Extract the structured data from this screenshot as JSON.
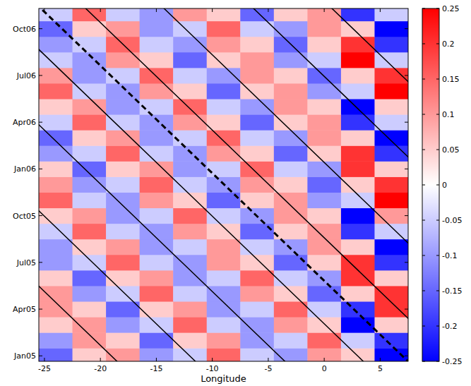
{
  "chart_data": {
    "type": "heatmap",
    "x_label": "Longitude",
    "xlim": [
      -25.5,
      7.5
    ],
    "xticks": [
      -25,
      -20,
      -15,
      -10,
      -5,
      0,
      5
    ],
    "ylim": [
      -0.35,
      22.3
    ],
    "yticks": [
      {
        "value": 0,
        "label": "Jan05"
      },
      {
        "value": 3,
        "label": "Apr05"
      },
      {
        "value": 6,
        "label": "Jul05"
      },
      {
        "value": 9,
        "label": "Oct05"
      },
      {
        "value": 12,
        "label": "Jan06"
      },
      {
        "value": 15,
        "label": "Apr06"
      },
      {
        "value": 18,
        "label": "Jul06"
      },
      {
        "value": 21,
        "label": "Oct06"
      }
    ],
    "x": [
      -24,
      -21,
      -18,
      -15,
      -12,
      -9,
      -6,
      -3,
      0,
      3,
      6
    ],
    "y": [
      0,
      1,
      2,
      3,
      4,
      5,
      6,
      7,
      8,
      9,
      10,
      11,
      12,
      13,
      14,
      15,
      16,
      17,
      18,
      19,
      20,
      21,
      22
    ],
    "cells": [
      [
        -0.15,
        0.05,
        0.1,
        -0.1,
        -0.05,
        0.15,
        -0.05,
        -0.1,
        0.1,
        0.05,
        -0.25
      ],
      [
        -0.1,
        0.1,
        0.05,
        -0.15,
        0.05,
        0.1,
        -0.1,
        -0.05,
        0.15,
        -0.05,
        -0.2
      ],
      [
        0.05,
        0.1,
        -0.1,
        -0.05,
        0.15,
        -0.05,
        -0.1,
        0.1,
        0.05,
        -0.25,
        0.05
      ],
      [
        0.1,
        0.05,
        -0.15,
        0.05,
        0.1,
        -0.1,
        -0.05,
        0.15,
        -0.05,
        -0.2,
        0.2
      ],
      [
        0.1,
        -0.1,
        -0.05,
        0.15,
        -0.05,
        -0.1,
        0.1,
        0.05,
        -0.15,
        0.05,
        0.2
      ],
      [
        0.05,
        -0.15,
        0.05,
        0.1,
        -0.1,
        -0.05,
        0.15,
        -0.05,
        -0.1,
        0.2,
        0.05
      ],
      [
        -0.1,
        -0.05,
        0.15,
        -0.05,
        -0.1,
        0.1,
        0.05,
        -0.15,
        0.05,
        0.2,
        -0.2
      ],
      [
        -0.1,
        0.05,
        0.1,
        -0.1,
        -0.05,
        0.1,
        -0.05,
        -0.1,
        0.1,
        0.05,
        -0.25
      ],
      [
        -0.05,
        0.15,
        -0.05,
        -0.1,
        0.1,
        0.05,
        -0.15,
        0.05,
        0.1,
        -0.2,
        -0.05
      ],
      [
        0.05,
        0.1,
        -0.1,
        -0.05,
        0.15,
        -0.05,
        -0.1,
        0.1,
        0.05,
        -0.25,
        0.1
      ],
      [
        0.15,
        -0.05,
        -0.1,
        0.1,
        0.05,
        -0.15,
        0.05,
        0.1,
        -0.1,
        -0.05,
        0.25
      ],
      [
        0.1,
        -0.1,
        -0.05,
        0.15,
        -0.05,
        -0.1,
        0.1,
        0.05,
        -0.15,
        0.05,
        0.2
      ],
      [
        0.05,
        -0.15,
        0.05,
        0.1,
        -0.1,
        -0.05,
        0.15,
        -0.05,
        -0.1,
        0.2,
        0.05
      ],
      [
        -0.1,
        -0.05,
        0.15,
        -0.05,
        -0.1,
        0.1,
        0.05,
        -0.15,
        0.05,
        0.2,
        -0.2
      ],
      [
        -0.15,
        0.05,
        0.1,
        -0.1,
        -0.05,
        0.15,
        -0.05,
        -0.1,
        0.1,
        0.05,
        -0.25
      ],
      [
        -0.05,
        0.15,
        -0.05,
        -0.1,
        0.1,
        0.05,
        -0.15,
        0.05,
        0.1,
        -0.2,
        -0.05
      ],
      [
        0.05,
        0.1,
        -0.1,
        -0.05,
        0.15,
        -0.05,
        -0.1,
        0.1,
        0.05,
        -0.25,
        0.05
      ],
      [
        0.15,
        -0.05,
        -0.1,
        0.1,
        0.05,
        -0.15,
        0.05,
        0.1,
        -0.1,
        -0.05,
        0.25
      ],
      [
        0.1,
        -0.1,
        -0.05,
        0.15,
        -0.05,
        -0.1,
        0.1,
        0.05,
        -0.15,
        0.05,
        0.2
      ],
      [
        -0.05,
        -0.1,
        0.1,
        0.05,
        -0.15,
        0.05,
        0.1,
        -0.1,
        -0.05,
        0.25,
        -0.05
      ],
      [
        -0.1,
        -0.05,
        0.15,
        -0.05,
        -0.1,
        0.1,
        0.05,
        -0.15,
        0.05,
        0.2,
        -0.2
      ],
      [
        -0.15,
        0.05,
        0.1,
        -0.1,
        -0.05,
        0.15,
        -0.05,
        -0.1,
        0.1,
        0.05,
        -0.25
      ],
      [
        -0.05,
        0.15,
        -0.05,
        -0.1,
        0.1,
        0.05,
        -0.15,
        0.05,
        0.1,
        -0.2,
        -0.05
      ]
    ],
    "colorbar": {
      "lim": [
        -0.25,
        0.25
      ],
      "ticks": [
        -0.25,
        -0.2,
        -0.15,
        -0.1,
        -0.05,
        0,
        0.05,
        0.1,
        0.15,
        0.2,
        0.25
      ]
    },
    "contours": [
      {
        "x": [
          -18.3,
          -51.6
        ],
        "y": [
          -0.5,
          22.5
        ],
        "line_style": "solid"
      },
      {
        "x": [
          -11.3,
          -44.6
        ],
        "y": [
          -0.5,
          22.5
        ],
        "line_style": "solid"
      },
      {
        "x": [
          -3.3,
          -36.6
        ],
        "y": [
          -0.5,
          22.5
        ],
        "line_style": "solid"
      },
      {
        "x": [
          3.7,
          -29.6
        ],
        "y": [
          -0.5,
          22.5
        ],
        "line_style": "solid"
      },
      {
        "x": [
          11.7,
          -21.6
        ],
        "y": [
          -0.5,
          22.5
        ],
        "line_style": "solid"
      },
      {
        "x": [
          18.7,
          -14.6
        ],
        "y": [
          -0.5,
          22.5
        ],
        "line_style": "solid"
      },
      {
        "x": [
          26.7,
          -6.6
        ],
        "y": [
          -0.5,
          22.5
        ],
        "line_style": "solid"
      },
      {
        "x": [
          33.7,
          0.4
        ],
        "y": [
          -0.5,
          22.5
        ],
        "line_style": "solid"
      },
      {
        "x": [
          7.7,
          -25.6
        ],
        "y": [
          -0.5,
          22.5
        ],
        "line_style": "dashed"
      }
    ]
  }
}
